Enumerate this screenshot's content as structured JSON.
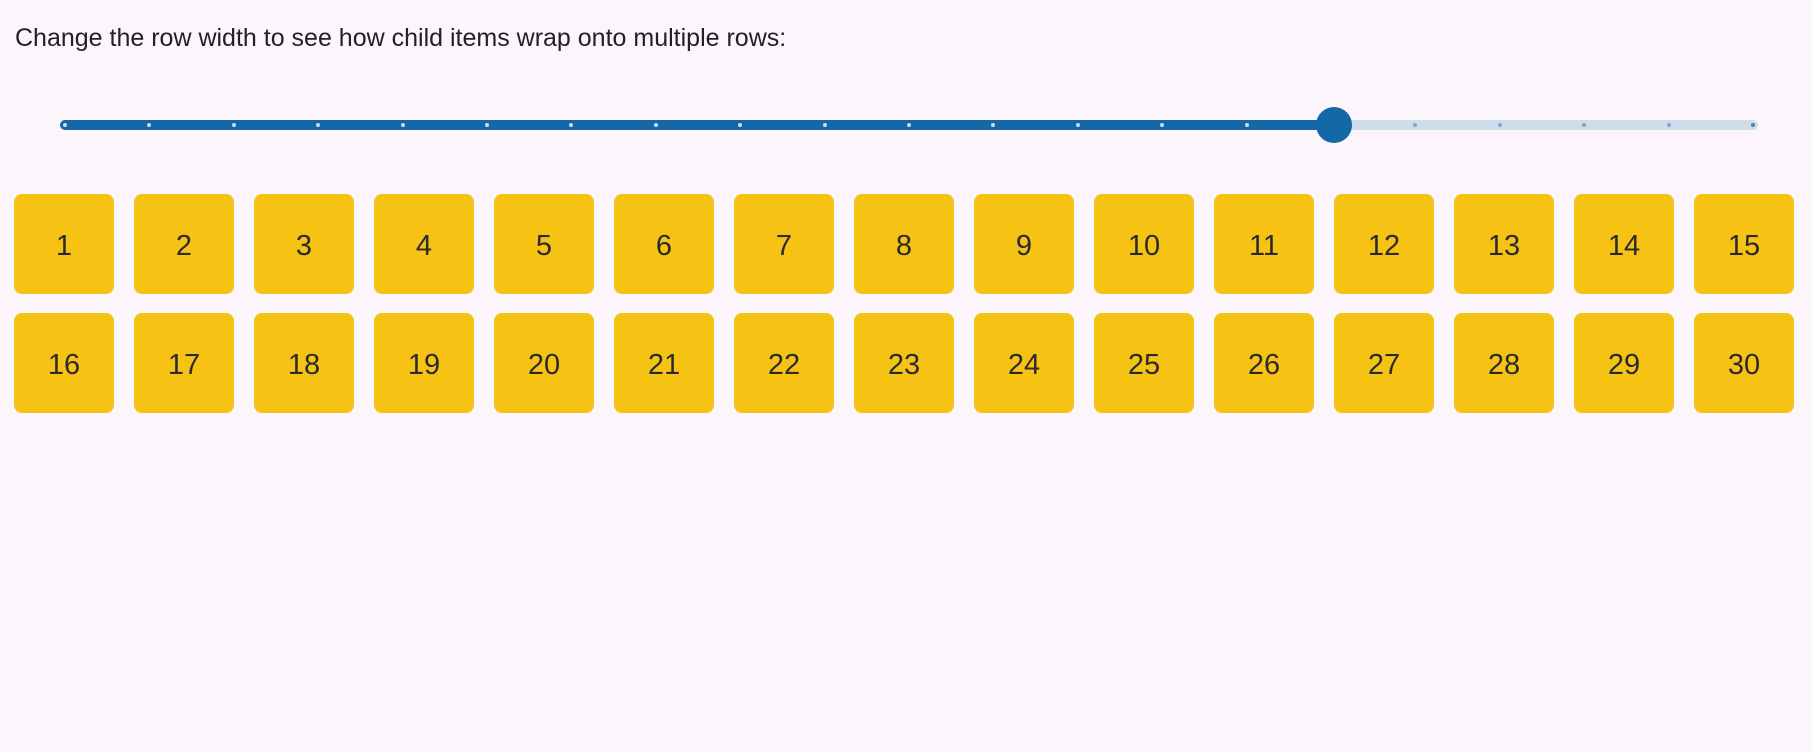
{
  "page": {
    "title": "Change the row width to see how child items wrap onto multiple rows:"
  },
  "colors": {
    "background": "#FDF5FC",
    "title_text": "#242124",
    "slider_accent": "#1568A8",
    "slider_track_empty": "#CDDDEA",
    "slider_tick_on_fill": "#C9DCEC",
    "slider_tick_on_empty": "#7FA9CB",
    "slider_tick_end": "#4F81AC",
    "tile_background": "#F6C315",
    "tile_text": "#2B2B2B"
  },
  "slider": {
    "percent": 75,
    "tick_count": 21,
    "min": 0,
    "max": 20,
    "value": 15
  },
  "grid": {
    "items": [
      "1",
      "2",
      "3",
      "4",
      "5",
      "6",
      "7",
      "8",
      "9",
      "10",
      "11",
      "12",
      "13",
      "14",
      "15",
      "16",
      "17",
      "18",
      "19",
      "20",
      "21",
      "22",
      "23",
      "24",
      "25",
      "26",
      "27",
      "28",
      "29",
      "30"
    ],
    "items_per_row": 15
  }
}
